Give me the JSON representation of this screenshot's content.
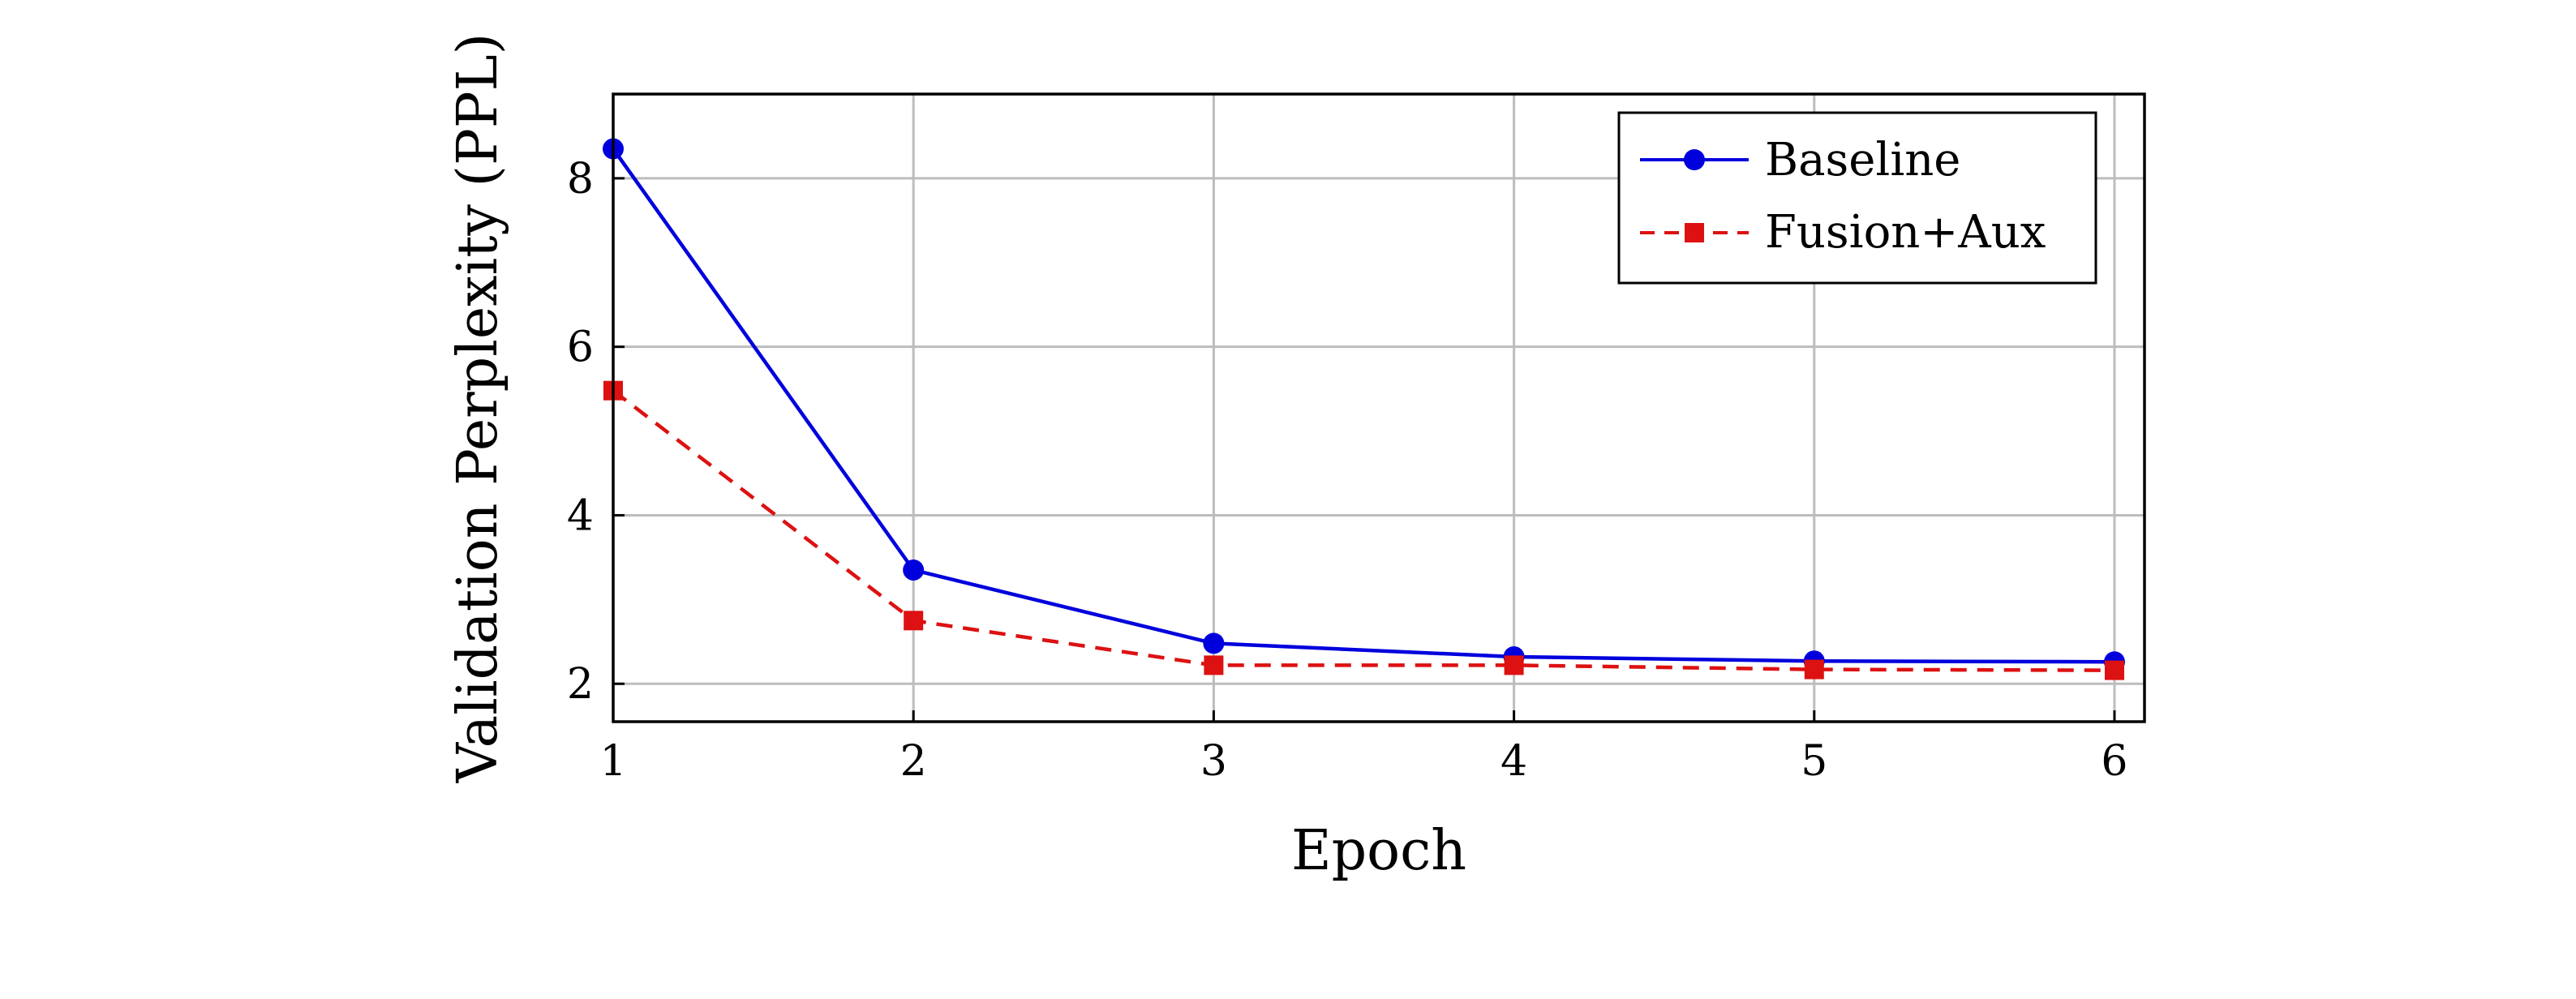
{
  "chart_data": {
    "type": "line",
    "title": "",
    "xlabel": "Epoch",
    "ylabel": "Validation Perplexity (PPL)",
    "x": [
      1,
      2,
      3,
      4,
      5,
      6
    ],
    "xlim": [
      1,
      6.1
    ],
    "ylim": [
      1.55,
      9.0
    ],
    "xticks": [
      1,
      2,
      3,
      4,
      5,
      6
    ],
    "yticks": [
      2,
      4,
      6,
      8
    ],
    "grid": true,
    "legend_position": "top-right",
    "series": [
      {
        "name": "Baseline",
        "values": [
          8.35,
          3.35,
          2.48,
          2.32,
          2.27,
          2.26
        ],
        "color": "#0000dd",
        "line_style": "solid",
        "marker": "circle"
      },
      {
        "name": "Fusion+Aux",
        "values": [
          5.48,
          2.75,
          2.22,
          2.22,
          2.17,
          2.16
        ],
        "color": "#dd1111",
        "line_style": "dashed",
        "marker": "square"
      }
    ]
  }
}
